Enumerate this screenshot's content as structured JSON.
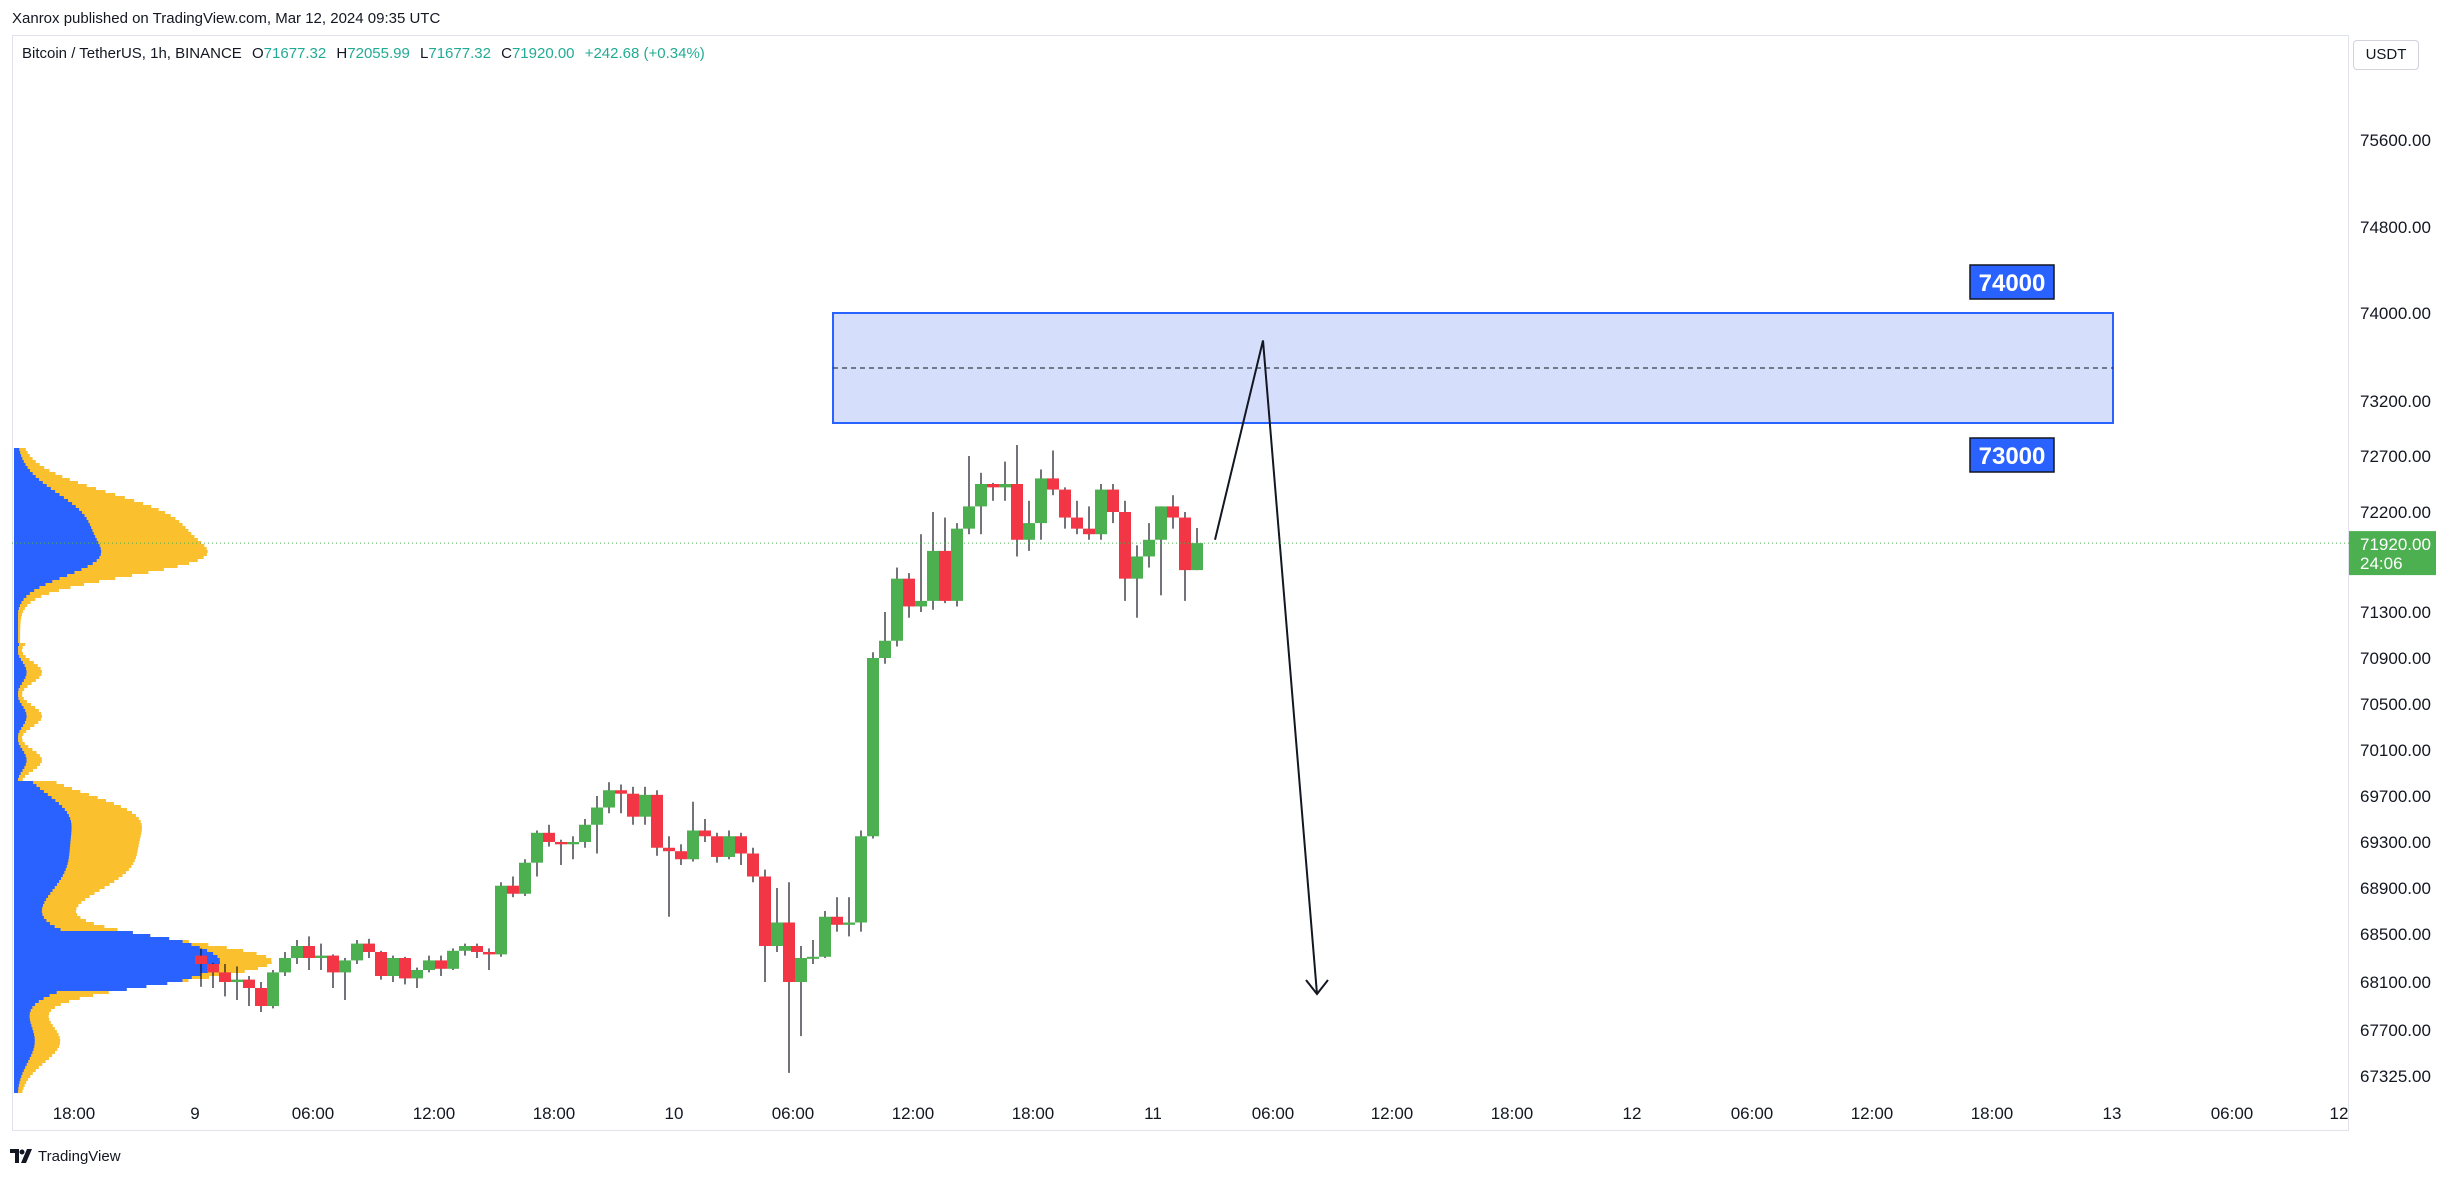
{
  "header": {
    "published": "Xanrox published on TradingView.com, Mar 12, 2024 09:35 UTC"
  },
  "legend": {
    "symbol": "Bitcoin / TetherUS, 1h, BINANCE",
    "open_label": "O",
    "open": "71677.32",
    "high_label": "H",
    "high": "72055.99",
    "low_label": "L",
    "low": "71677.32",
    "close_label": "C",
    "close": "71920.00",
    "change": "+242.68 (+0.34%)"
  },
  "currency": "USDT",
  "footer": {
    "brand": "TradingView"
  },
  "colors": {
    "up": "#4caf50",
    "down": "#f23645",
    "volume_profile_up": "#2962ff",
    "volume_profile_down": "#fbc02d",
    "zone_fill": "#d5defb",
    "zone_border": "#2962ff",
    "last_price": "#4caf50"
  },
  "chart_data": {
    "type": "candlestick",
    "timeframe": "1h",
    "symbol": "BTCUSDT",
    "exchange": "BINANCE",
    "y_axis": {
      "ticks": [
        "75600.00",
        "74800.00",
        "74000.00",
        "73200.00",
        "72700.00",
        "72200.00",
        "71300.00",
        "70900.00",
        "70500.00",
        "70100.00",
        "69700.00",
        "69300.00",
        "68900.00",
        "68500.00",
        "68100.00",
        "67700.00",
        "67325.00"
      ]
    },
    "x_axis": {
      "ticks": [
        "18:00",
        "9",
        "06:00",
        "12:00",
        "18:00",
        "10",
        "06:00",
        "12:00",
        "18:00",
        "11",
        "06:00",
        "12:00",
        "18:00",
        "12",
        "06:00",
        "12:00",
        "18:00",
        "13",
        "06:00",
        "12"
      ]
    },
    "last_price": {
      "value": "71920.00",
      "countdown": "24:06"
    },
    "candles": [
      {
        "o": 68320,
        "h": 68380,
        "l": 68060,
        "c": 68250
      },
      {
        "o": 68250,
        "h": 68260,
        "l": 68050,
        "c": 68180
      },
      {
        "o": 68180,
        "h": 68250,
        "l": 67980,
        "c": 68100
      },
      {
        "o": 68100,
        "h": 68230,
        "l": 67950,
        "c": 68120
      },
      {
        "o": 68120,
        "h": 68150,
        "l": 67900,
        "c": 68050
      },
      {
        "o": 68050,
        "h": 68100,
        "l": 67850,
        "c": 67900
      },
      {
        "o": 67900,
        "h": 68200,
        "l": 67880,
        "c": 68180
      },
      {
        "o": 68180,
        "h": 68350,
        "l": 68150,
        "c": 68300
      },
      {
        "o": 68300,
        "h": 68450,
        "l": 68250,
        "c": 68400
      },
      {
        "o": 68400,
        "h": 68480,
        "l": 68200,
        "c": 68300
      },
      {
        "o": 68300,
        "h": 68420,
        "l": 68200,
        "c": 68320
      },
      {
        "o": 68320,
        "h": 68330,
        "l": 68050,
        "c": 68180
      },
      {
        "o": 68180,
        "h": 68300,
        "l": 67950,
        "c": 68280
      },
      {
        "o": 68280,
        "h": 68450,
        "l": 68250,
        "c": 68420
      },
      {
        "o": 68420,
        "h": 68460,
        "l": 68300,
        "c": 68350
      },
      {
        "o": 68350,
        "h": 68360,
        "l": 68120,
        "c": 68150
      },
      {
        "o": 68150,
        "h": 68320,
        "l": 68100,
        "c": 68300
      },
      {
        "o": 68300,
        "h": 68310,
        "l": 68080,
        "c": 68130
      },
      {
        "o": 68130,
        "h": 68220,
        "l": 68050,
        "c": 68200
      },
      {
        "o": 68200,
        "h": 68320,
        "l": 68180,
        "c": 68280
      },
      {
        "o": 68280,
        "h": 68320,
        "l": 68150,
        "c": 68210
      },
      {
        "o": 68210,
        "h": 68380,
        "l": 68200,
        "c": 68360
      },
      {
        "o": 68360,
        "h": 68420,
        "l": 68320,
        "c": 68400
      },
      {
        "o": 68400,
        "h": 68420,
        "l": 68300,
        "c": 68350
      },
      {
        "o": 68350,
        "h": 68380,
        "l": 68200,
        "c": 68330
      },
      {
        "o": 68330,
        "h": 68950,
        "l": 68310,
        "c": 68920
      },
      {
        "o": 68920,
        "h": 69000,
        "l": 68820,
        "c": 68850
      },
      {
        "o": 68850,
        "h": 69150,
        "l": 68830,
        "c": 69120
      },
      {
        "o": 69120,
        "h": 69400,
        "l": 69000,
        "c": 69380
      },
      {
        "o": 69380,
        "h": 69450,
        "l": 69260,
        "c": 69300
      },
      {
        "o": 69300,
        "h": 69320,
        "l": 69100,
        "c": 69280
      },
      {
        "o": 69280,
        "h": 69350,
        "l": 69150,
        "c": 69300
      },
      {
        "o": 69300,
        "h": 69500,
        "l": 69250,
        "c": 69450
      },
      {
        "o": 69450,
        "h": 69700,
        "l": 69200,
        "c": 69600
      },
      {
        "o": 69600,
        "h": 69820,
        "l": 69550,
        "c": 69750
      },
      {
        "o": 69750,
        "h": 69800,
        "l": 69550,
        "c": 69720
      },
      {
        "o": 69720,
        "h": 69780,
        "l": 69450,
        "c": 69520
      },
      {
        "o": 69520,
        "h": 69780,
        "l": 69450,
        "c": 69710
      },
      {
        "o": 69710,
        "h": 69750,
        "l": 69180,
        "c": 69250
      },
      {
        "o": 69250,
        "h": 69350,
        "l": 68650,
        "c": 69220
      },
      {
        "o": 69220,
        "h": 69280,
        "l": 69100,
        "c": 69150
      },
      {
        "o": 69150,
        "h": 69650,
        "l": 69130,
        "c": 69400
      },
      {
        "o": 69400,
        "h": 69500,
        "l": 69300,
        "c": 69350
      },
      {
        "o": 69350,
        "h": 69380,
        "l": 69120,
        "c": 69170
      },
      {
        "o": 69170,
        "h": 69400,
        "l": 69150,
        "c": 69350
      },
      {
        "o": 69350,
        "h": 69380,
        "l": 69100,
        "c": 69200
      },
      {
        "o": 69200,
        "h": 69250,
        "l": 68950,
        "c": 69000
      },
      {
        "o": 69000,
        "h": 69060,
        "l": 68100,
        "c": 68400
      },
      {
        "o": 68400,
        "h": 68900,
        "l": 68350,
        "c": 68600
      },
      {
        "o": 68600,
        "h": 68950,
        "l": 67350,
        "c": 68100
      },
      {
        "o": 68100,
        "h": 68400,
        "l": 67650,
        "c": 68300
      },
      {
        "o": 68300,
        "h": 68450,
        "l": 68250,
        "c": 68310
      },
      {
        "o": 68310,
        "h": 68700,
        "l": 68300,
        "c": 68650
      },
      {
        "o": 68650,
        "h": 68820,
        "l": 68520,
        "c": 68580
      },
      {
        "o": 68580,
        "h": 68820,
        "l": 68480,
        "c": 68600
      },
      {
        "o": 68600,
        "h": 69400,
        "l": 68520,
        "c": 69350
      },
      {
        "o": 69350,
        "h": 70950,
        "l": 69330,
        "c": 70900
      },
      {
        "o": 70900,
        "h": 71300,
        "l": 70850,
        "c": 71050
      },
      {
        "o": 71050,
        "h": 71700,
        "l": 71000,
        "c": 71600
      },
      {
        "o": 71600,
        "h": 71650,
        "l": 71250,
        "c": 71350
      },
      {
        "o": 71350,
        "h": 72000,
        "l": 71300,
        "c": 71400
      },
      {
        "o": 71400,
        "h": 72200,
        "l": 71320,
        "c": 71850
      },
      {
        "o": 71850,
        "h": 72150,
        "l": 71380,
        "c": 71400
      },
      {
        "o": 71400,
        "h": 72100,
        "l": 71350,
        "c": 72050
      },
      {
        "o": 72050,
        "h": 72700,
        "l": 72000,
        "c": 72250
      },
      {
        "o": 72250,
        "h": 72550,
        "l": 72000,
        "c": 72450
      },
      {
        "o": 72450,
        "h": 72460,
        "l": 72300,
        "c": 72420
      },
      {
        "o": 72420,
        "h": 72650,
        "l": 72300,
        "c": 72450
      },
      {
        "o": 72450,
        "h": 72800,
        "l": 71800,
        "c": 71950
      },
      {
        "o": 71950,
        "h": 72300,
        "l": 71850,
        "c": 72100
      },
      {
        "o": 72100,
        "h": 72580,
        "l": 71950,
        "c": 72500
      },
      {
        "o": 72500,
        "h": 72750,
        "l": 72350,
        "c": 72400
      },
      {
        "o": 72400,
        "h": 72420,
        "l": 72050,
        "c": 72150
      },
      {
        "o": 72150,
        "h": 72300,
        "l": 72000,
        "c": 72050
      },
      {
        "o": 72050,
        "h": 72250,
        "l": 71950,
        "c": 72000
      },
      {
        "o": 72000,
        "h": 72450,
        "l": 71950,
        "c": 72400
      },
      {
        "o": 72400,
        "h": 72450,
        "l": 72100,
        "c": 72200
      },
      {
        "o": 72200,
        "h": 72300,
        "l": 71400,
        "c": 71600
      },
      {
        "o": 71600,
        "h": 71900,
        "l": 71250,
        "c": 71800
      },
      {
        "o": 71800,
        "h": 72100,
        "l": 71700,
        "c": 71950
      },
      {
        "o": 71950,
        "h": 72250,
        "l": 71450,
        "c": 72250
      },
      {
        "o": 72250,
        "h": 72350,
        "l": 72050,
        "c": 72150
      },
      {
        "o": 72150,
        "h": 72200,
        "l": 71400,
        "c": 71677
      },
      {
        "o": 71677,
        "h": 72056,
        "l": 71677,
        "c": 71920
      }
    ],
    "drawings": {
      "zone": {
        "top": 74000,
        "bottom": 73000,
        "label_top": "74000",
        "label_bottom": "73000"
      },
      "projection_path": [
        {
          "time_index": 84.5,
          "price": 71950
        },
        {
          "time_index": 88.5,
          "price": 73750
        },
        {
          "time_index": 93,
          "price": 68000
        }
      ]
    },
    "volume_profile": "horizontal volume-by-price histogram anchored at left edge"
  }
}
